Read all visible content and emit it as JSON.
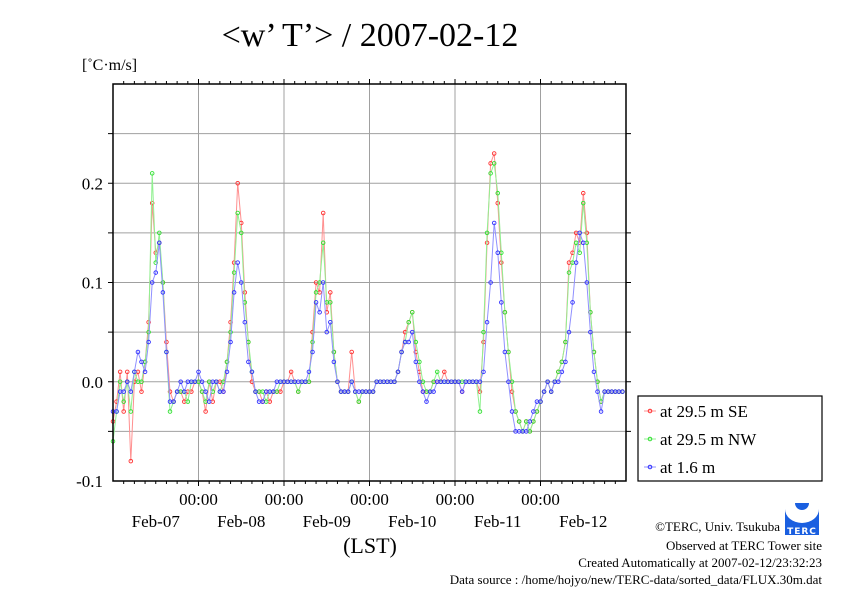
{
  "chart_data": {
    "type": "line",
    "title": "<w’ T’> / 2007-02-12",
    "ylabel": "[˚C·m/s]",
    "xlabel": "(LST)",
    "ylim": [
      -0.1,
      0.3
    ],
    "xlim_hours": [
      0,
      144
    ],
    "x_step_hours": 1,
    "grid": true,
    "legend_position": "right-bottom-outside",
    "y_ticks": [
      {
        "value": 0.2,
        "label": "0.2"
      },
      {
        "value": 0.1,
        "label": "0.1"
      },
      {
        "value": 0.0,
        "label": "0.0"
      },
      {
        "value": -0.1,
        "label": "-0.1"
      }
    ],
    "x_time_ticks": [
      {
        "hour": 24,
        "label": "00:00"
      },
      {
        "hour": 48,
        "label": "00:00"
      },
      {
        "hour": 72,
        "label": "00:00"
      },
      {
        "hour": 96,
        "label": "00:00"
      },
      {
        "hour": 120,
        "label": "00:00"
      }
    ],
    "x_day_labels": [
      {
        "hour": 12,
        "label": "Feb-07"
      },
      {
        "hour": 36,
        "label": "Feb-08"
      },
      {
        "hour": 60,
        "label": "Feb-09"
      },
      {
        "hour": 84,
        "label": "Feb-10"
      },
      {
        "hour": 108,
        "label": "Feb-11"
      },
      {
        "hour": 132,
        "label": "Feb-12"
      }
    ],
    "series": [
      {
        "name": "at 29.5 m SE",
        "color": "#ff3030",
        "line": "#ff9090",
        "values": [
          -0.04,
          -0.02,
          0.01,
          -0.03,
          0.01,
          -0.08,
          0.0,
          0.01,
          -0.01,
          0.02,
          0.06,
          0.18,
          0.13,
          0.14,
          0.1,
          0.04,
          -0.01,
          -0.02,
          -0.01,
          -0.01,
          -0.02,
          -0.01,
          -0.01,
          0.0,
          0.0,
          -0.01,
          -0.03,
          0.0,
          -0.02,
          0.0,
          0.0,
          -0.01,
          0.02,
          0.06,
          0.12,
          0.2,
          0.16,
          0.09,
          0.04,
          0.0,
          -0.01,
          -0.01,
          -0.02,
          -0.01,
          -0.02,
          -0.01,
          -0.01,
          -0.01,
          0.0,
          0.0,
          0.01,
          0.0,
          -0.01,
          0.0,
          0.0,
          0.0,
          0.05,
          0.1,
          0.09,
          0.17,
          0.07,
          0.09,
          0.03,
          0.0,
          -0.01,
          -0.01,
          -0.01,
          0.03,
          -0.01,
          -0.02,
          -0.01,
          -0.01,
          -0.01,
          -0.01,
          0.0,
          0.0,
          0.0,
          0.0,
          0.0,
          0.0,
          0.01,
          0.03,
          0.05,
          0.06,
          0.07,
          0.03,
          0.01,
          -0.01,
          -0.01,
          -0.01,
          0.0,
          0.0,
          0.0,
          0.01,
          0.0,
          0.0,
          0.0,
          0.0,
          -0.01,
          0.0,
          0.0,
          0.0,
          0.0,
          -0.01,
          0.04,
          0.14,
          0.22,
          0.23,
          0.18,
          0.12,
          0.07,
          0.03,
          -0.01,
          -0.03,
          -0.04,
          -0.05,
          -0.04,
          -0.05,
          -0.04,
          -0.03,
          -0.02,
          -0.01,
          0.0,
          -0.01,
          0.0,
          0.01,
          0.02,
          0.04,
          0.12,
          0.13,
          0.15,
          0.14,
          0.19,
          0.15,
          0.07,
          0.03,
          0.0,
          -0.02,
          -0.01,
          -0.01,
          -0.01,
          -0.01,
          -0.01,
          -0.01
        ]
      },
      {
        "name": "at 29.5 m NW",
        "color": "#30e030",
        "line": "#90f090",
        "values": [
          -0.06,
          -0.03,
          0.0,
          -0.02,
          0.0,
          -0.03,
          0.01,
          0.0,
          0.0,
          0.02,
          0.05,
          0.21,
          0.12,
          0.15,
          0.1,
          0.03,
          -0.03,
          -0.02,
          -0.01,
          -0.01,
          -0.01,
          -0.02,
          0.0,
          0.0,
          0.0,
          -0.01,
          -0.02,
          0.0,
          -0.01,
          0.0,
          -0.01,
          0.0,
          0.02,
          0.05,
          0.11,
          0.17,
          0.15,
          0.08,
          0.04,
          0.01,
          -0.01,
          -0.01,
          -0.01,
          -0.02,
          -0.01,
          -0.01,
          -0.01,
          0.0,
          0.0,
          0.0,
          0.0,
          0.0,
          -0.01,
          0.0,
          0.0,
          0.0,
          0.04,
          0.09,
          0.1,
          0.14,
          0.08,
          0.08,
          0.03,
          0.0,
          -0.01,
          -0.01,
          -0.01,
          0.0,
          -0.01,
          -0.02,
          -0.01,
          -0.01,
          -0.01,
          -0.01,
          0.0,
          0.0,
          0.0,
          0.0,
          0.0,
          0.0,
          0.01,
          0.03,
          0.04,
          0.06,
          0.07,
          0.04,
          0.02,
          0.0,
          -0.01,
          -0.01,
          0.0,
          0.01,
          0.0,
          0.0,
          0.0,
          0.0,
          0.0,
          0.0,
          0.0,
          0.0,
          0.0,
          0.0,
          0.0,
          -0.03,
          0.05,
          0.15,
          0.21,
          0.22,
          0.19,
          0.13,
          0.07,
          0.03,
          0.0,
          -0.03,
          -0.04,
          -0.05,
          -0.04,
          -0.05,
          -0.04,
          -0.03,
          -0.02,
          -0.01,
          0.0,
          -0.01,
          0.0,
          0.01,
          0.02,
          0.04,
          0.11,
          0.12,
          0.14,
          0.13,
          0.18,
          0.14,
          0.07,
          0.03,
          0.0,
          -0.02,
          -0.01,
          -0.01,
          -0.01,
          -0.01,
          -0.01,
          -0.01
        ]
      },
      {
        "name": "at 1.6 m",
        "color": "#3030ff",
        "line": "#9090ff",
        "values": [
          -0.03,
          -0.03,
          -0.01,
          -0.01,
          0.0,
          -0.01,
          0.01,
          0.03,
          0.02,
          0.01,
          0.04,
          0.1,
          0.11,
          0.14,
          0.09,
          0.03,
          -0.02,
          -0.02,
          -0.01,
          0.0,
          -0.01,
          0.0,
          0.0,
          0.0,
          0.01,
          0.0,
          -0.01,
          -0.02,
          0.0,
          0.0,
          -0.01,
          -0.01,
          0.01,
          0.04,
          0.09,
          0.12,
          0.1,
          0.06,
          0.02,
          0.01,
          -0.01,
          -0.02,
          -0.02,
          -0.01,
          -0.01,
          -0.01,
          0.0,
          0.0,
          0.0,
          0.0,
          0.0,
          0.0,
          0.0,
          0.0,
          0.0,
          0.01,
          0.03,
          0.08,
          0.07,
          0.1,
          0.05,
          0.06,
          0.02,
          0.0,
          -0.01,
          -0.01,
          -0.01,
          0.0,
          -0.01,
          -0.01,
          -0.01,
          -0.01,
          -0.01,
          -0.01,
          0.0,
          0.0,
          0.0,
          0.0,
          0.0,
          0.0,
          0.01,
          0.03,
          0.04,
          0.04,
          0.05,
          0.02,
          0.0,
          -0.01,
          -0.02,
          -0.01,
          -0.01,
          0.0,
          0.0,
          0.0,
          0.0,
          0.0,
          0.0,
          0.0,
          -0.01,
          0.0,
          0.0,
          0.0,
          0.0,
          0.0,
          0.01,
          0.06,
          0.1,
          0.16,
          0.13,
          0.08,
          0.03,
          0.0,
          -0.03,
          -0.05,
          -0.05,
          -0.05,
          -0.05,
          -0.04,
          -0.03,
          -0.02,
          -0.02,
          -0.01,
          0.0,
          -0.01,
          0.0,
          0.0,
          0.01,
          0.02,
          0.05,
          0.08,
          0.12,
          0.15,
          0.14,
          0.1,
          0.05,
          0.01,
          -0.01,
          -0.03,
          -0.01,
          -0.01,
          -0.01,
          -0.01,
          -0.01,
          -0.01
        ]
      }
    ]
  },
  "footer": {
    "copyright": "©TERC, Univ. Tsukuba",
    "observed": "Observed at TERC Tower site",
    "created": "Created Automatically at 2007-02-12/23:32:23",
    "source": "Data source : /home/hojyo/new/TERC-data/sorted_data/FLUX.30m.dat",
    "logo_text": "TERC"
  }
}
